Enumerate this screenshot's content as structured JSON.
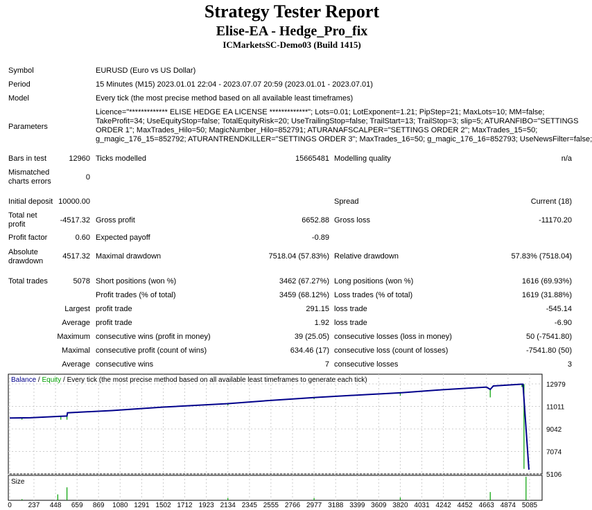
{
  "header": {
    "title": "Strategy Tester Report",
    "subtitle": "Elise-EA - Hedge_Pro_fix",
    "server": "ICMarketsSC-Demo03 (Build 1415)"
  },
  "info": {
    "symbol_label": "Symbol",
    "symbol": "EURUSD (Euro vs US Dollar)",
    "period_label": "Period",
    "period": "15 Minutes (M15) 2023.01.01 22:04 - 2023.07.07 20:59 (2023.01.01 - 2023.07.01)",
    "model_label": "Model",
    "model": "Every tick (the most precise method based on all available least timeframes)",
    "parameters_label": "Parameters",
    "parameters": [
      "Licence=\"************* ELISE HEDGE EA LICENSE *************\"; Lots=0.01; LotExponent=1.21; PipStep=21; MaxLots=10; MM=false;",
      "TakeProfit=34; UseEquityStop=false; TotalEquityRisk=20; UseTrailingStop=false; TrailStart=13; TrailStop=3; slip=5; ATURANFIBO=\"SETTINGS",
      "ORDER 1\"; MaxTrades_Hilo=50; MagicNumber_Hilo=852791; ATURANAFSCALPER=\"SETTINGS ORDER 2\"; MaxTrades_15=50;",
      "g_magic_176_15=852792; ATURANTRENDKILLER=\"SETTINGS ORDER 3\"; MaxTrades_16=50; g_magic_176_16=852793; UseNewsFilter=false;"
    ]
  },
  "stats": {
    "bars_label": "Bars in test",
    "bars": "12960",
    "ticks_label": "Ticks modelled",
    "ticks": "15665481",
    "quality_label": "Modelling quality",
    "quality": "n/a",
    "mismatch_label1": "Mismatched",
    "mismatch_label2": "charts errors",
    "mismatch": "0",
    "deposit_label": "Initial deposit",
    "deposit": "10000.00",
    "spread_label": "Spread",
    "spread": "Current (18)",
    "net_label1": "Total net",
    "net_label2": "profit",
    "net": "-4517.32",
    "gross_profit_label": "Gross profit",
    "gross_profit": "6652.88",
    "gross_loss_label": "Gross loss",
    "gross_loss": "-11170.20",
    "pf_label": "Profit factor",
    "pf": "0.60",
    "payoff_label": "Expected payoff",
    "payoff": "-0.89",
    "abs_label1": "Absolute",
    "abs_label2": "drawdown",
    "abs": "4517.32",
    "maxdd_label": "Maximal drawdown",
    "maxdd": "7518.04 (57.83%)",
    "reldd_label": "Relative drawdown",
    "reldd": "57.83% (7518.04)",
    "trades_label": "Total trades",
    "trades": "5078",
    "short_label": "Short positions (won %)",
    "short": "3462 (67.27%)",
    "long_label": "Long positions (won %)",
    "long": "1616 (69.93%)",
    "pt_label": "Profit trades (% of total)",
    "pt": "3459 (68.12%)",
    "lt_label": "Loss trades (% of total)",
    "lt": "1619 (31.88%)",
    "largest_label": "Largest",
    "lpt_label": "profit trade",
    "lpt": "291.15",
    "llt_label": "loss trade",
    "llt": "-545.14",
    "average_label": "Average",
    "apt_label": "profit trade",
    "apt": "1.92",
    "alt_label": "loss trade",
    "alt": "-6.90",
    "maximum_label": "Maximum",
    "mcw_label": "consecutive wins (profit in money)",
    "mcw": "39 (25.05)",
    "mcl_label": "consecutive losses (loss in money)",
    "mcl": "50 (-7541.80)",
    "maximal_label": "Maximal",
    "mcp_label": "consecutive profit (count of wins)",
    "mcp": "634.46 (17)",
    "mclc_label": "consecutive loss (count of losses)",
    "mclc": "-7541.80 (50)",
    "average2_label": "Average",
    "acw_label": "consecutive wins",
    "acw": "7",
    "acl_label": "consecutive losses",
    "acl": "3"
  },
  "chart_data": {
    "type": "line",
    "legend": {
      "balance": "Balance",
      "sep1": " / ",
      "equity": "Equity",
      "rest": " / Every tick (the most precise method based on all available least timeframes to generate each tick)"
    },
    "size_label": "Size",
    "colors": {
      "balance": "#00008b",
      "equity": "#00a000",
      "size": "#00a000"
    },
    "ylim": [
      5106,
      12979
    ],
    "yticks": [
      "12979",
      "11011",
      "9042",
      "7074",
      "5106"
    ],
    "xticks": [
      "0",
      "237",
      "448",
      "659",
      "869",
      "1080",
      "1291",
      "1502",
      "1712",
      "1923",
      "2134",
      "2345",
      "2555",
      "2766",
      "2977",
      "3188",
      "3399",
      "3609",
      "3820",
      "4031",
      "4242",
      "4452",
      "4663",
      "4874",
      "5085"
    ],
    "balance": [
      [
        0,
        10000
      ],
      [
        200,
        10020
      ],
      [
        500,
        10150
      ],
      [
        560,
        10170
      ],
      [
        565,
        10450
      ],
      [
        1000,
        10650
      ],
      [
        1500,
        10950
      ],
      [
        2134,
        11250
      ],
      [
        2500,
        11500
      ],
      [
        3000,
        11800
      ],
      [
        3500,
        12050
      ],
      [
        3820,
        12200
      ],
      [
        4200,
        12450
      ],
      [
        4663,
        12700
      ],
      [
        4700,
        12500
      ],
      [
        4730,
        12800
      ],
      [
        5000,
        12950
      ],
      [
        5020,
        12950
      ],
      [
        5078,
        5483
      ]
    ],
    "equity_dips": [
      [
        120,
        9850
      ],
      [
        500,
        9850
      ],
      [
        560,
        9850
      ],
      [
        2134,
        11100
      ],
      [
        2977,
        11650
      ],
      [
        3820,
        11950
      ],
      [
        4700,
        11800
      ],
      [
        5010,
        12700
      ],
      [
        5030,
        5550
      ]
    ],
    "size": [
      [
        120,
        0.05
      ],
      [
        470,
        0.25
      ],
      [
        560,
        0.55
      ],
      [
        2134,
        0.1
      ],
      [
        2977,
        0.1
      ],
      [
        3820,
        0.12
      ],
      [
        4700,
        0.35
      ],
      [
        5050,
        1.0
      ]
    ]
  }
}
